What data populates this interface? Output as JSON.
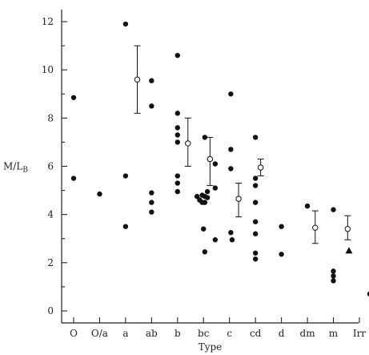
{
  "chart_data": {
    "type": "scatter",
    "xlabel": "Type",
    "ylabel_main": "M/L",
    "ylabel_sub": "B",
    "ylim": [
      -0.5,
      12.5
    ],
    "yticks": [
      0,
      2,
      4,
      6,
      8,
      10,
      12
    ],
    "categories": [
      "O",
      "O/a",
      "a",
      "ab",
      "b",
      "bc",
      "c",
      "cd",
      "d",
      "dm",
      "m",
      "Irr"
    ],
    "grid": false,
    "series": [
      {
        "marker": "filled-circle",
        "points": [
          {
            "x": 0,
            "y": 8.85
          },
          {
            "x": 0,
            "y": 5.5
          },
          {
            "x": 1,
            "y": 4.85
          },
          {
            "x": 2,
            "y": 11.9
          },
          {
            "x": 2,
            "y": 5.6
          },
          {
            "x": 2,
            "y": 3.5
          },
          {
            "x": 3,
            "y": 9.55
          },
          {
            "x": 3,
            "y": 8.5
          },
          {
            "x": 3,
            "y": 4.9
          },
          {
            "x": 3,
            "y": 4.5
          },
          {
            "x": 3,
            "y": 4.1
          },
          {
            "x": 4,
            "y": 10.6
          },
          {
            "x": 4,
            "y": 8.2
          },
          {
            "x": 4,
            "y": 7.6
          },
          {
            "x": 4,
            "y": 7.3
          },
          {
            "x": 4,
            "y": 7.0
          },
          {
            "x": 4,
            "y": 5.6
          },
          {
            "x": 4,
            "y": 5.3
          },
          {
            "x": 4,
            "y": 4.95
          },
          {
            "x": 4.75,
            "y": 4.75
          },
          {
            "x": 4.85,
            "y": 4.6
          },
          {
            "x": 4.95,
            "y": 4.8
          },
          {
            "x": 4.95,
            "y": 4.5
          },
          {
            "x": 5.05,
            "y": 4.75
          },
          {
            "x": 5.05,
            "y": 4.5
          },
          {
            "x": 5.15,
            "y": 4.7
          },
          {
            "x": 5.15,
            "y": 4.95
          },
          {
            "x": 5.05,
            "y": 7.2
          },
          {
            "x": 5.0,
            "y": 3.4
          },
          {
            "x": 5.05,
            "y": 2.45
          },
          {
            "x": 5.45,
            "y": 6.1
          },
          {
            "x": 5.45,
            "y": 5.1
          },
          {
            "x": 5.45,
            "y": 2.95
          },
          {
            "x": 6.05,
            "y": 9.0
          },
          {
            "x": 6.05,
            "y": 6.7
          },
          {
            "x": 6.05,
            "y": 5.9
          },
          {
            "x": 6.05,
            "y": 3.25
          },
          {
            "x": 6.1,
            "y": 2.95
          },
          {
            "x": 7,
            "y": 7.2
          },
          {
            "x": 7,
            "y": 5.5
          },
          {
            "x": 7,
            "y": 5.2
          },
          {
            "x": 7,
            "y": 4.5
          },
          {
            "x": 7,
            "y": 3.7
          },
          {
            "x": 7,
            "y": 3.2
          },
          {
            "x": 7,
            "y": 2.4
          },
          {
            "x": 7,
            "y": 2.15
          },
          {
            "x": 8,
            "y": 3.5
          },
          {
            "x": 8,
            "y": 2.35
          },
          {
            "x": 9,
            "y": 4.35
          },
          {
            "x": 10,
            "y": 4.2
          },
          {
            "x": 10,
            "y": 1.65
          },
          {
            "x": 10,
            "y": 1.45
          },
          {
            "x": 10,
            "y": 1.25
          },
          {
            "x": 11.4,
            "y": 0.7
          }
        ]
      },
      {
        "marker": "open-circle-with-error-bar",
        "points": [
          {
            "x": 2.45,
            "y": 9.6,
            "ylow": 8.2,
            "yhigh": 11.0
          },
          {
            "x": 4.4,
            "y": 6.95,
            "ylow": 6.0,
            "yhigh": 8.0
          },
          {
            "x": 5.25,
            "y": 6.3,
            "ylow": 5.2,
            "yhigh": 7.2
          },
          {
            "x": 6.35,
            "y": 4.65,
            "ylow": 3.9,
            "yhigh": 5.3
          },
          {
            "x": 7.2,
            "y": 5.95,
            "ylow": 5.6,
            "yhigh": 6.3
          },
          {
            "x": 9.3,
            "y": 3.45,
            "ylow": 2.8,
            "yhigh": 4.15
          },
          {
            "x": 10.55,
            "y": 3.4,
            "ylow": 2.95,
            "yhigh": 3.95
          }
        ]
      },
      {
        "marker": "filled-triangle",
        "points": [
          {
            "x": 10.6,
            "y": 2.5
          }
        ]
      }
    ]
  }
}
